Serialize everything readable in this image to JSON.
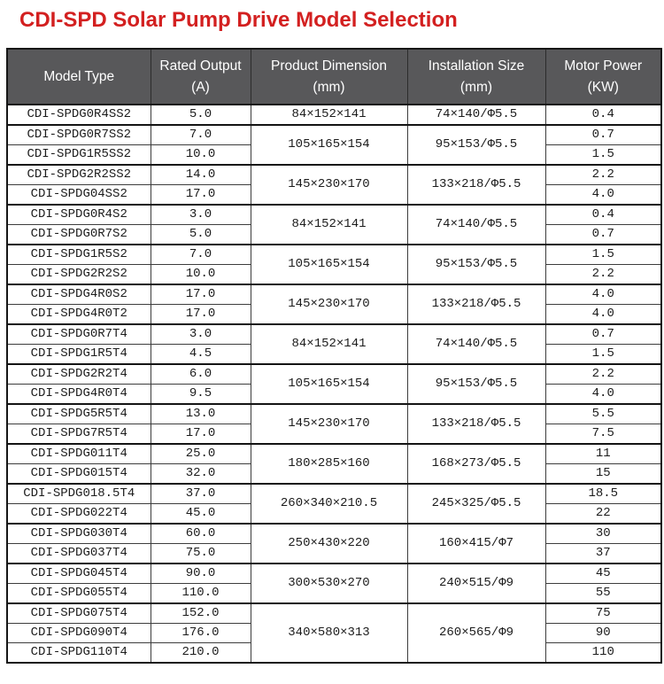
{
  "title": "CDI-SPD Solar Pump Drive Model Selection",
  "colors": {
    "title_red": "#d32020",
    "header_bg": "#58585a",
    "header_text": "#ffffff",
    "border_strong": "#141414",
    "border_light": "#3d3d3d"
  },
  "table": {
    "columns": [
      {
        "label": "Model Type",
        "unit": ""
      },
      {
        "label": "Rated Output",
        "unit": "(A)"
      },
      {
        "label": "Product Dimension",
        "unit": "(mm)"
      },
      {
        "label": "Installation Size",
        "unit": "(mm)"
      },
      {
        "label": "Motor Power",
        "unit": "(KW)"
      }
    ],
    "groups": [
      {
        "dimension": "84×152×141",
        "installation": "74×140/Φ5.5",
        "rows": [
          {
            "model": "CDI-SPDG0R4SS2",
            "rated": "5.0",
            "power": "0.4"
          }
        ]
      },
      {
        "dimension": "105×165×154",
        "installation": "95×153/Φ5.5",
        "rows": [
          {
            "model": "CDI-SPDG0R7SS2",
            "rated": "7.0",
            "power": "0.7"
          },
          {
            "model": "CDI-SPDG1R5SS2",
            "rated": "10.0",
            "power": "1.5"
          }
        ]
      },
      {
        "dimension": "145×230×170",
        "installation": "133×218/Φ5.5",
        "rows": [
          {
            "model": "CDI-SPDG2R2SS2",
            "rated": "14.0",
            "power": "2.2"
          },
          {
            "model": "CDI-SPDG04SS2",
            "rated": "17.0",
            "power": "4.0"
          }
        ]
      },
      {
        "dimension": "84×152×141",
        "installation": "74×140/Φ5.5",
        "rows": [
          {
            "model": "CDI-SPDG0R4S2",
            "rated": "3.0",
            "power": "0.4"
          },
          {
            "model": "CDI-SPDG0R7S2",
            "rated": "5.0",
            "power": "0.7"
          }
        ]
      },
      {
        "dimension": "105×165×154",
        "installation": "95×153/Φ5.5",
        "rows": [
          {
            "model": "CDI-SPDG1R5S2",
            "rated": "7.0",
            "power": "1.5"
          },
          {
            "model": "CDI-SPDG2R2S2",
            "rated": "10.0",
            "power": "2.2"
          }
        ]
      },
      {
        "dimension": "145×230×170",
        "installation": "133×218/Φ5.5",
        "rows": [
          {
            "model": "CDI-SPDG4R0S2",
            "rated": "17.0",
            "power": "4.0"
          },
          {
            "model": "CDI-SPDG4R0T2",
            "rated": "17.0",
            "power": "4.0"
          }
        ]
      },
      {
        "dimension": "84×152×141",
        "installation": "74×140/Φ5.5",
        "rows": [
          {
            "model": "CDI-SPDG0R7T4",
            "rated": "3.0",
            "power": "0.7"
          },
          {
            "model": "CDI-SPDG1R5T4",
            "rated": "4.5",
            "power": "1.5"
          }
        ]
      },
      {
        "dimension": "105×165×154",
        "installation": "95×153/Φ5.5",
        "rows": [
          {
            "model": "CDI-SPDG2R2T4",
            "rated": "6.0",
            "power": "2.2"
          },
          {
            "model": "CDI-SPDG4R0T4",
            "rated": "9.5",
            "power": "4.0"
          }
        ]
      },
      {
        "dimension": "145×230×170",
        "installation": "133×218/Φ5.5",
        "rows": [
          {
            "model": "CDI-SPDG5R5T4",
            "rated": "13.0",
            "power": "5.5"
          },
          {
            "model": "CDI-SPDG7R5T4",
            "rated": "17.0",
            "power": "7.5"
          }
        ]
      },
      {
        "dimension": "180×285×160",
        "installation": "168×273/Φ5.5",
        "rows": [
          {
            "model": "CDI-SPDG011T4",
            "rated": "25.0",
            "power": "11"
          },
          {
            "model": "CDI-SPDG015T4",
            "rated": "32.0",
            "power": "15"
          }
        ]
      },
      {
        "dimension": "260×340×210.5",
        "installation": "245×325/Φ5.5",
        "rows": [
          {
            "model": "CDI-SPDG018.5T4",
            "rated": "37.0",
            "power": "18.5"
          },
          {
            "model": "CDI-SPDG022T4",
            "rated": "45.0",
            "power": "22"
          }
        ]
      },
      {
        "dimension": "250×430×220",
        "installation": "160×415/Φ7",
        "rows": [
          {
            "model": "CDI-SPDG030T4",
            "rated": "60.0",
            "power": "30"
          },
          {
            "model": "CDI-SPDG037T4",
            "rated": "75.0",
            "power": "37"
          }
        ]
      },
      {
        "dimension": "300×530×270",
        "installation": "240×515/Φ9",
        "rows": [
          {
            "model": "CDI-SPDG045T4",
            "rated": "90.0",
            "power": "45"
          },
          {
            "model": "CDI-SPDG055T4",
            "rated": "110.0",
            "power": "55"
          }
        ]
      },
      {
        "dimension": "340×580×313",
        "installation": "260×565/Φ9",
        "rows": [
          {
            "model": "CDI-SPDG075T4",
            "rated": "152.0",
            "power": "75"
          },
          {
            "model": "CDI-SPDG090T4",
            "rated": "176.0",
            "power": "90"
          },
          {
            "model": "CDI-SPDG110T4",
            "rated": "210.0",
            "power": "110"
          }
        ]
      }
    ]
  }
}
